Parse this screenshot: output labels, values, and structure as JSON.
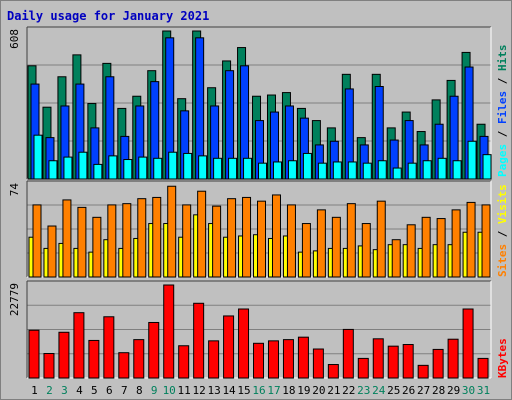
{
  "title": "Daily usage for January 2021",
  "colors": {
    "pages": "#00ffff",
    "files": "#0040ff",
    "hits": "#00805c",
    "sites": "#ff8000",
    "visits": "#ffff00",
    "kbytes": "#ff0000",
    "title": "#0000c0",
    "weekday": "#000000",
    "weekend": "#00805c",
    "panel_bg": "#c0c0c0",
    "grid": "#808080"
  },
  "side_labels": {
    "pages": "Pages",
    "files": "Files",
    "hits": "Hits",
    "sites": "Sites",
    "visits": "Visits",
    "kbytes": "KBytes",
    "sep": " / "
  },
  "chart_data": [
    {
      "type": "bar",
      "title": "Daily usage for January 2021",
      "ymax_label": "608",
      "ylim": [
        0,
        608
      ],
      "categories": [
        "1",
        "2",
        "3",
        "4",
        "5",
        "6",
        "7",
        "8",
        "9",
        "10",
        "11",
        "12",
        "13",
        "14",
        "15",
        "16",
        "17",
        "18",
        "19",
        "20",
        "21",
        "22",
        "23",
        "24",
        "25",
        "26",
        "27",
        "28",
        "29",
        "30",
        "31"
      ],
      "series": [
        {
          "name": "Hits",
          "values": [
            465,
            295,
            420,
            510,
            310,
            475,
            290,
            340,
            445,
            608,
            330,
            608,
            375,
            485,
            540,
            340,
            345,
            355,
            290,
            240,
            210,
            430,
            170,
            430,
            210,
            275,
            195,
            325,
            405,
            520,
            225
          ]
        },
        {
          "name": "Files",
          "values": [
            390,
            170,
            300,
            390,
            210,
            420,
            175,
            300,
            400,
            580,
            280,
            580,
            300,
            445,
            465,
            240,
            275,
            300,
            250,
            140,
            155,
            370,
            140,
            380,
            160,
            240,
            140,
            225,
            340,
            460,
            175
          ]
        },
        {
          "name": "Pages",
          "values": [
            180,
            75,
            90,
            110,
            60,
            95,
            80,
            90,
            85,
            110,
            105,
            95,
            85,
            85,
            85,
            65,
            70,
            75,
            105,
            65,
            70,
            70,
            65,
            75,
            45,
            65,
            75,
            85,
            75,
            155,
            100
          ]
        }
      ]
    },
    {
      "type": "bar",
      "ymax_label": "74",
      "ylim": [
        0,
        74
      ],
      "categories": [
        "1",
        "2",
        "3",
        "4",
        "5",
        "6",
        "7",
        "8",
        "9",
        "10",
        "11",
        "12",
        "13",
        "14",
        "15",
        "16",
        "17",
        "18",
        "19",
        "20",
        "21",
        "22",
        "23",
        "24",
        "25",
        "26",
        "27",
        "28",
        "29",
        "30",
        "31"
      ],
      "series": [
        {
          "name": "Visits",
          "values": [
            32,
            23,
            27,
            23,
            20,
            30,
            23,
            31,
            43,
            43,
            32,
            50,
            43,
            32,
            33,
            34,
            31,
            33,
            20,
            21,
            23,
            23,
            25,
            22,
            26,
            26,
            23,
            26,
            26,
            36,
            36
          ]
        },
        {
          "name": "Sites",
          "values": [
            58,
            41,
            62,
            56,
            48,
            58,
            59,
            63,
            64,
            73,
            58,
            69,
            57,
            63,
            64,
            61,
            66,
            58,
            43,
            54,
            48,
            59,
            43,
            61,
            30,
            42,
            48,
            47,
            54,
            60,
            58
          ]
        }
      ]
    },
    {
      "type": "bar",
      "ymax_label": "22779",
      "ylim": [
        0,
        22779
      ],
      "categories": [
        "1",
        "2",
        "3",
        "4",
        "5",
        "6",
        "7",
        "8",
        "9",
        "10",
        "11",
        "12",
        "13",
        "14",
        "15",
        "16",
        "17",
        "18",
        "19",
        "20",
        "21",
        "22",
        "23",
        "24",
        "25",
        "26",
        "27",
        "28",
        "29",
        "30",
        "31"
      ],
      "series": [
        {
          "name": "KBytes",
          "values": [
            11700,
            6000,
            11200,
            16000,
            9200,
            15000,
            6200,
            9400,
            13600,
            22779,
            7900,
            18300,
            9100,
            15200,
            16900,
            8500,
            9100,
            9400,
            10000,
            7100,
            3300,
            11900,
            4800,
            9600,
            7800,
            8200,
            3100,
            7000,
            9500,
            16900,
            4800
          ]
        }
      ]
    }
  ],
  "day_labels": [
    "1",
    "2",
    "3",
    "4",
    "5",
    "6",
    "7",
    "8",
    "9",
    "10",
    "11",
    "12",
    "13",
    "14",
    "15",
    "16",
    "17",
    "18",
    "19",
    "20",
    "21",
    "22",
    "23",
    "24",
    "25",
    "26",
    "27",
    "28",
    "29",
    "30",
    "31"
  ],
  "weekend_days": [
    2,
    3,
    9,
    10,
    16,
    17,
    23,
    24,
    30,
    31
  ]
}
